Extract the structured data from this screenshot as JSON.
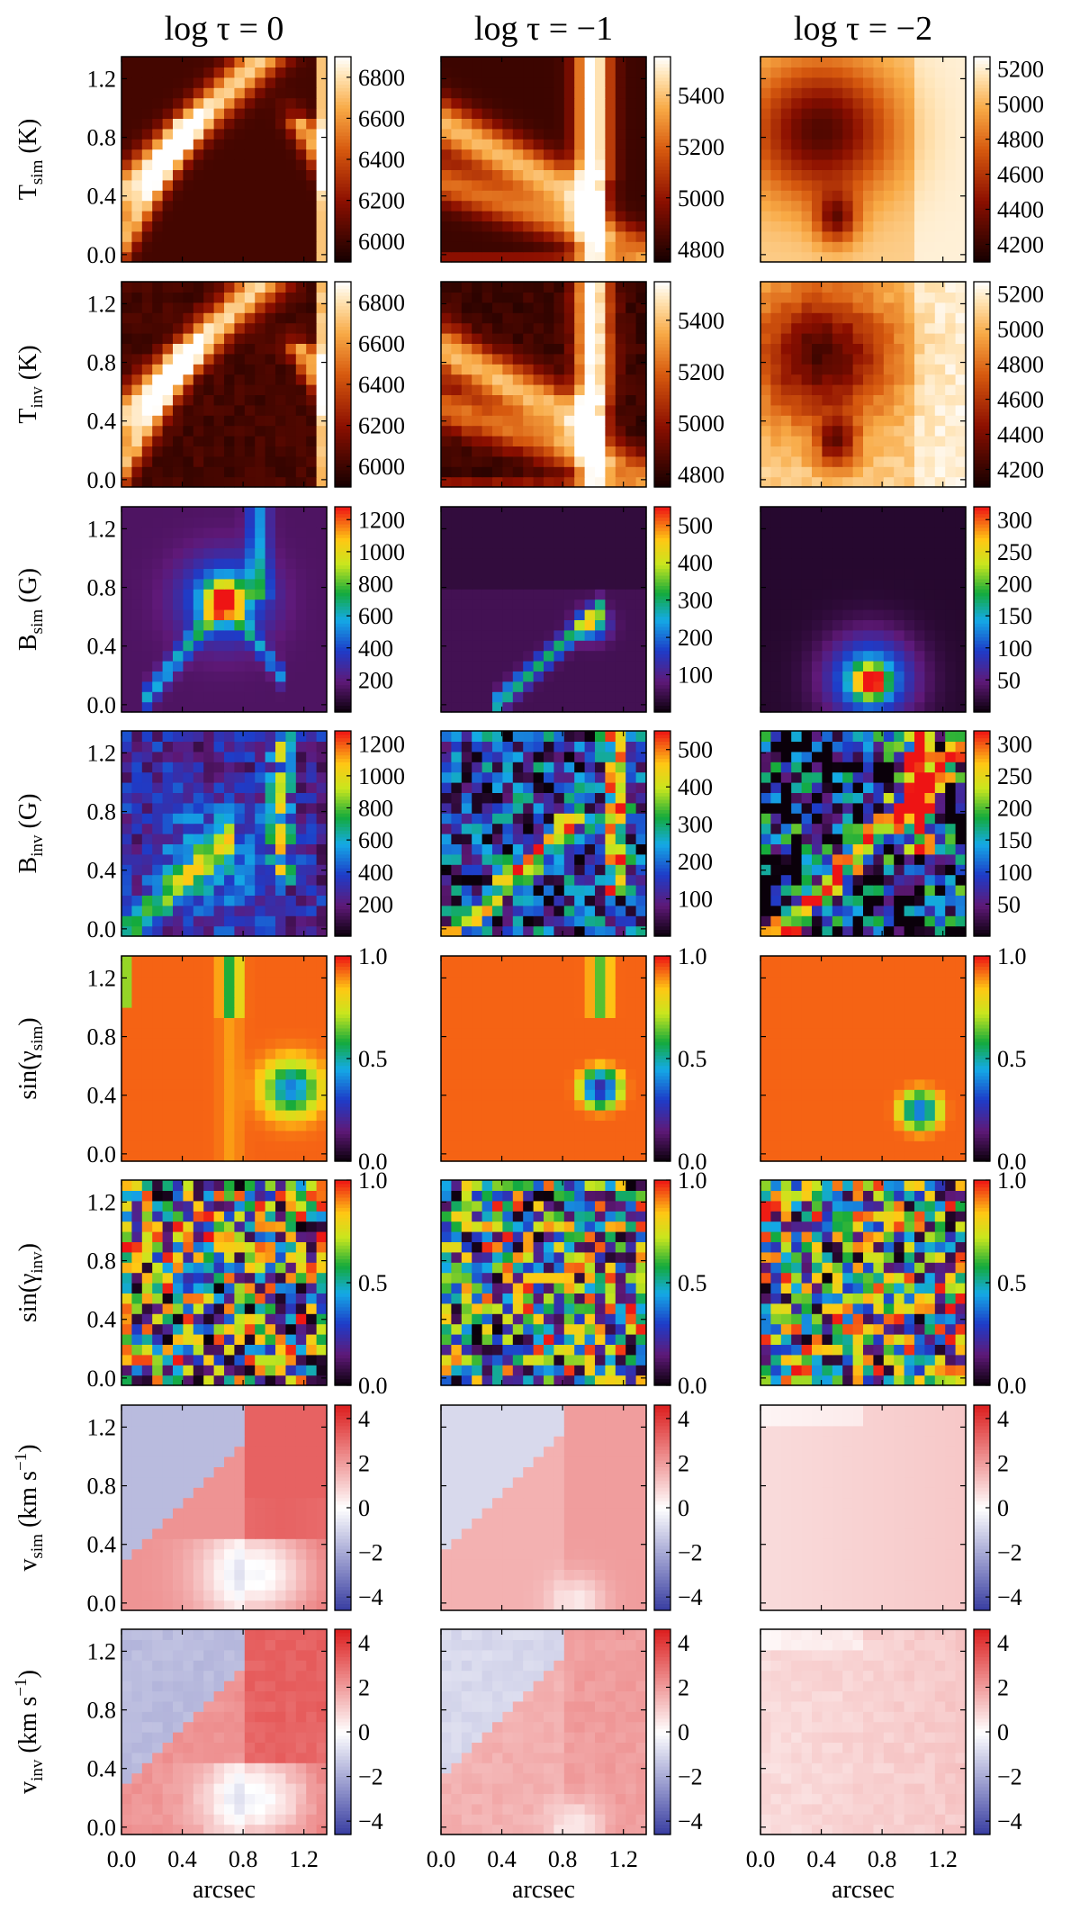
{
  "chart_data": {
    "type": "heatmap",
    "columns": [
      {
        "title_prefix": "log τ = ",
        "title_value": "0"
      },
      {
        "title_prefix": "log τ = ",
        "title_value": "−1"
      },
      {
        "title_prefix": "log τ = ",
        "title_value": "−2"
      }
    ],
    "x_axis": {
      "label": "arcsec",
      "range": [
        0.0,
        1.35
      ],
      "ticks": [
        "0.0",
        "0.4",
        "0.8",
        "1.2"
      ],
      "tick_values": [
        0.0,
        0.4,
        0.8,
        1.2
      ]
    },
    "y_axis": {
      "range": [
        -0.05,
        1.35
      ],
      "ticks": [
        "0.0",
        "0.4",
        "0.8",
        "1.2"
      ],
      "tick_values": [
        0.0,
        0.4,
        0.8,
        1.2
      ]
    },
    "rows": [
      {
        "ylabel_main": "T",
        "ylabel_sub": "sim",
        "ylabel_unit": "(K)",
        "colormap": "heat",
        "colorbars": [
          {
            "range": [
              5900,
              6900
            ],
            "ticks": [
              "6000",
              "6200",
              "6400",
              "6600",
              "6800"
            ],
            "tick_values": [
              6000,
              6200,
              6400,
              6600,
              6800
            ]
          },
          {
            "range": [
              4750,
              5550
            ],
            "ticks": [
              "4800",
              "5000",
              "5200",
              "5400"
            ],
            "tick_values": [
              4800,
              5000,
              5200,
              5400
            ]
          },
          {
            "range": [
              4100,
              5270
            ],
            "ticks": [
              "4200",
              "4400",
              "4600",
              "4800",
              "5000",
              "5200"
            ],
            "tick_values": [
              4200,
              4400,
              4600,
              4800,
              5000,
              5200
            ]
          }
        ]
      },
      {
        "ylabel_main": "T",
        "ylabel_sub": "inv",
        "ylabel_unit": "(K)",
        "colormap": "heat",
        "colorbars": [
          {
            "range": [
              5900,
              6900
            ],
            "ticks": [
              "6000",
              "6200",
              "6400",
              "6600",
              "6800"
            ],
            "tick_values": [
              6000,
              6200,
              6400,
              6600,
              6800
            ]
          },
          {
            "range": [
              4750,
              5550
            ],
            "ticks": [
              "4800",
              "5000",
              "5200",
              "5400"
            ],
            "tick_values": [
              4800,
              5000,
              5200,
              5400
            ]
          },
          {
            "range": [
              4100,
              5270
            ],
            "ticks": [
              "4200",
              "4400",
              "4600",
              "4800",
              "5000",
              "5200"
            ],
            "tick_values": [
              4200,
              4400,
              4600,
              4800,
              5000,
              5200
            ]
          }
        ]
      },
      {
        "ylabel_main": "B",
        "ylabel_sub": "sim",
        "ylabel_unit": "(G)",
        "colormap": "rainbow",
        "colorbars": [
          {
            "range": [
              0,
              1280
            ],
            "ticks": [
              "200",
              "400",
              "600",
              "800",
              "1000",
              "1200"
            ],
            "tick_values": [
              200,
              400,
              600,
              800,
              1000,
              1200
            ]
          },
          {
            "range": [
              0,
              550
            ],
            "ticks": [
              "100",
              "200",
              "300",
              "400",
              "500"
            ],
            "tick_values": [
              100,
              200,
              300,
              400,
              500
            ]
          },
          {
            "range": [
              0,
              320
            ],
            "ticks": [
              "50",
              "100",
              "150",
              "200",
              "250",
              "300"
            ],
            "tick_values": [
              50,
              100,
              150,
              200,
              250,
              300
            ]
          }
        ]
      },
      {
        "ylabel_main": "B",
        "ylabel_sub": "inv",
        "ylabel_unit": "(G)",
        "colormap": "rainbow",
        "colorbars": [
          {
            "range": [
              0,
              1280
            ],
            "ticks": [
              "200",
              "400",
              "600",
              "800",
              "1000",
              "1200"
            ],
            "tick_values": [
              200,
              400,
              600,
              800,
              1000,
              1200
            ]
          },
          {
            "range": [
              0,
              550
            ],
            "ticks": [
              "100",
              "200",
              "300",
              "400",
              "500"
            ],
            "tick_values": [
              100,
              200,
              300,
              400,
              500
            ]
          },
          {
            "range": [
              0,
              320
            ],
            "ticks": [
              "50",
              "100",
              "150",
              "200",
              "250",
              "300"
            ],
            "tick_values": [
              50,
              100,
              150,
              200,
              250,
              300
            ]
          }
        ]
      },
      {
        "ylabel_main": "sin(γ",
        "ylabel_sub": "sim",
        "ylabel_unit": ")",
        "colormap": "rainbow",
        "colorbars": [
          {
            "range": [
              0,
              1
            ],
            "ticks": [
              "0.0",
              "0.5",
              "1.0"
            ],
            "tick_values": [
              0,
              0.5,
              1
            ]
          },
          {
            "range": [
              0,
              1
            ],
            "ticks": [
              "0.0",
              "0.5",
              "1.0"
            ],
            "tick_values": [
              0,
              0.5,
              1
            ]
          },
          {
            "range": [
              0,
              1
            ],
            "ticks": [
              "0.0",
              "0.5",
              "1.0"
            ],
            "tick_values": [
              0,
              0.5,
              1
            ]
          }
        ]
      },
      {
        "ylabel_main": "sin(γ",
        "ylabel_sub": "inv",
        "ylabel_unit": ")",
        "colormap": "rainbow",
        "colorbars": [
          {
            "range": [
              0,
              1
            ],
            "ticks": [
              "0.0",
              "0.5",
              "1.0"
            ],
            "tick_values": [
              0,
              0.5,
              1
            ]
          },
          {
            "range": [
              0,
              1
            ],
            "ticks": [
              "0.0",
              "0.5",
              "1.0"
            ],
            "tick_values": [
              0,
              0.5,
              1
            ]
          },
          {
            "range": [
              0,
              1
            ],
            "ticks": [
              "0.0",
              "0.5",
              "1.0"
            ],
            "tick_values": [
              0,
              0.5,
              1
            ]
          }
        ]
      },
      {
        "ylabel_main": "v",
        "ylabel_sub": "sim",
        "ylabel_unit": "(km s",
        "ylabel_sup": "−1",
        "ylabel_close": ")",
        "colormap": "diverging",
        "colorbars": [
          {
            "range": [
              -4.6,
              4.6
            ],
            "ticks": [
              "−4",
              "−2",
              "0",
              "2",
              "4"
            ],
            "tick_values": [
              -4,
              -2,
              0,
              2,
              4
            ]
          },
          {
            "range": [
              -4.6,
              4.6
            ],
            "ticks": [
              "−4",
              "−2",
              "0",
              "2",
              "4"
            ],
            "tick_values": [
              -4,
              -2,
              0,
              2,
              4
            ]
          },
          {
            "range": [
              -4.6,
              4.6
            ],
            "ticks": [
              "−4",
              "−2",
              "0",
              "2",
              "4"
            ],
            "tick_values": [
              -4,
              -2,
              0,
              2,
              4
            ]
          }
        ]
      },
      {
        "ylabel_main": "v",
        "ylabel_sub": "inv",
        "ylabel_unit": "(km s",
        "ylabel_sup": "−1",
        "ylabel_close": ")",
        "colormap": "diverging",
        "colorbars": [
          {
            "range": [
              -4.6,
              4.6
            ],
            "ticks": [
              "−4",
              "−2",
              "0",
              "2",
              "4"
            ],
            "tick_values": [
              -4,
              -2,
              0,
              2,
              4
            ]
          },
          {
            "range": [
              -4.6,
              4.6
            ],
            "ticks": [
              "−4",
              "−2",
              "0",
              "2",
              "4"
            ],
            "tick_values": [
              -4,
              -2,
              0,
              2,
              4
            ]
          },
          {
            "range": [
              -4.6,
              4.6
            ],
            "ticks": [
              "−4",
              "−2",
              "0",
              "2",
              "4"
            ],
            "tick_values": [
              -4,
              -2,
              0,
              2,
              4
            ]
          }
        ]
      }
    ]
  }
}
